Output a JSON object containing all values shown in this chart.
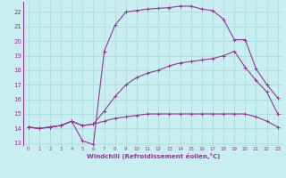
{
  "xlabel": "Windchill (Refroidissement éolien,°C)",
  "bg_color": "#c8eef0",
  "line_color": "#993399",
  "grid_color": "#aadddd",
  "xlim": [
    -0.5,
    23.5
  ],
  "ylim": [
    12.8,
    22.7
  ],
  "yticks": [
    13,
    14,
    15,
    16,
    17,
    18,
    19,
    20,
    21,
    22
  ],
  "xticks": [
    0,
    1,
    2,
    3,
    4,
    5,
    6,
    7,
    8,
    9,
    10,
    11,
    12,
    13,
    14,
    15,
    16,
    17,
    18,
    19,
    20,
    21,
    22,
    23
  ],
  "series": [
    {
      "x": [
        0,
        1,
        2,
        3,
        4,
        5,
        6,
        7,
        8,
        9,
        10,
        11,
        12,
        13,
        14,
        15,
        16,
        17,
        18,
        19,
        20,
        21,
        22,
        23
      ],
      "y": [
        14.1,
        14.0,
        14.1,
        14.2,
        14.5,
        13.15,
        12.9,
        19.3,
        21.1,
        22.0,
        22.1,
        22.2,
        22.25,
        22.3,
        22.4,
        22.4,
        22.2,
        22.1,
        21.5,
        20.1,
        20.1,
        18.1,
        17.0,
        16.1
      ]
    },
    {
      "x": [
        0,
        1,
        2,
        3,
        4,
        5,
        6,
        7,
        8,
        9,
        10,
        11,
        12,
        13,
        14,
        15,
        16,
        17,
        18,
        19,
        20,
        21,
        22,
        23
      ],
      "y": [
        14.1,
        14.0,
        14.1,
        14.2,
        14.5,
        14.2,
        14.3,
        15.2,
        16.2,
        17.0,
        17.5,
        17.8,
        18.0,
        18.3,
        18.5,
        18.6,
        18.7,
        18.8,
        19.0,
        19.3,
        18.2,
        17.3,
        16.5,
        15.0
      ]
    },
    {
      "x": [
        0,
        1,
        2,
        3,
        4,
        5,
        6,
        7,
        8,
        9,
        10,
        11,
        12,
        13,
        14,
        15,
        16,
        17,
        18,
        19,
        20,
        21,
        22,
        23
      ],
      "y": [
        14.1,
        14.0,
        14.1,
        14.2,
        14.5,
        14.2,
        14.3,
        14.5,
        14.7,
        14.8,
        14.9,
        15.0,
        15.0,
        15.0,
        15.0,
        15.0,
        15.0,
        15.0,
        15.0,
        15.0,
        15.0,
        14.8,
        14.5,
        14.1
      ]
    }
  ]
}
